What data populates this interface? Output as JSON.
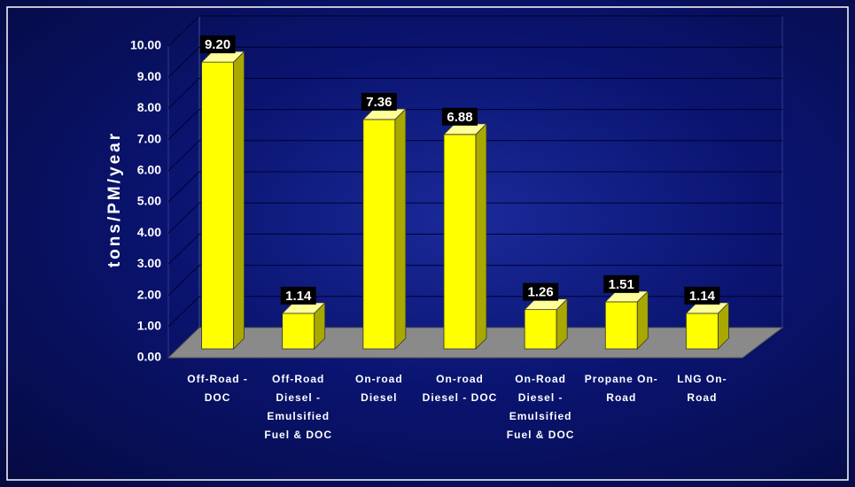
{
  "chart_data": {
    "type": "bar3d",
    "y_label": "tons/PM/year",
    "categories": [
      "Off-Road - DOC",
      "Off-Road Diesel - Emulsified Fuel & DOC",
      "On-road Diesel",
      "On-road Diesel - DOC",
      "On-Road Diesel - Emulsified Fuel & DOC",
      "Propane On-Road",
      "LNG On-Road"
    ],
    "values": [
      9.2,
      1.14,
      7.36,
      6.88,
      1.26,
      1.51,
      1.14
    ],
    "value_labels": [
      "9.20",
      "1.14",
      "7.36",
      "6.88",
      "1.26",
      "1.51",
      "1.14"
    ],
    "color": "#ffff00",
    "ylim": [
      0,
      10
    ],
    "yticks": [
      {
        "value": 0,
        "label": "0.00"
      },
      {
        "value": 1,
        "label": "1.00"
      },
      {
        "value": 2,
        "label": "2.00"
      },
      {
        "value": 3,
        "label": "3.00"
      },
      {
        "value": 4,
        "label": "4.00"
      },
      {
        "value": 5,
        "label": "5.00"
      },
      {
        "value": 6,
        "label": "6.00"
      },
      {
        "value": 7,
        "label": "7.00"
      },
      {
        "value": 8,
        "label": "8.00"
      },
      {
        "value": 9,
        "label": "9.00"
      },
      {
        "value": 10,
        "label": "10.00"
      }
    ],
    "grid": true
  }
}
